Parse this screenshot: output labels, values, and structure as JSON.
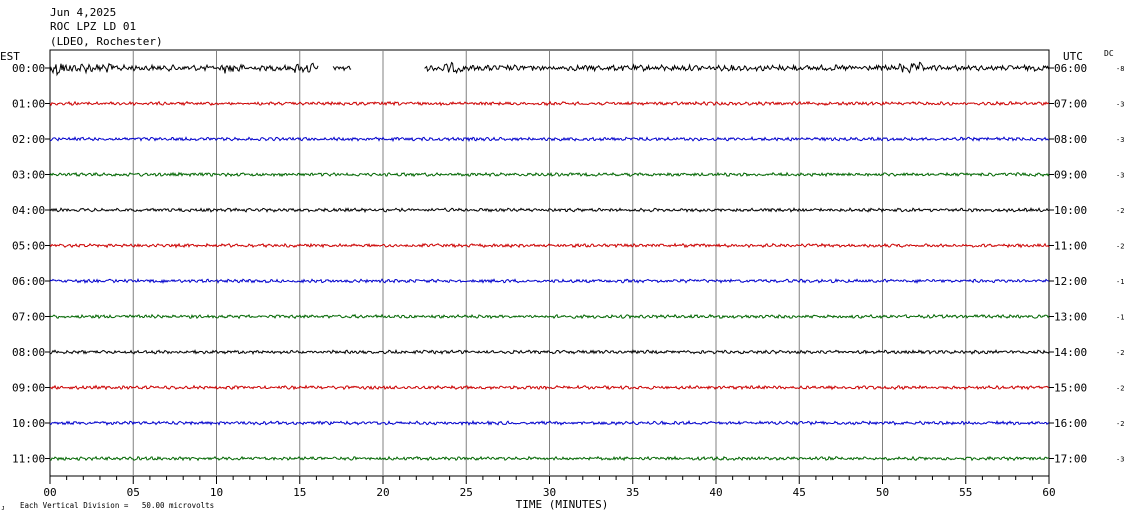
{
  "header": {
    "date": "Jun 4,2025",
    "station": "ROC LPZ LD 01",
    "network": "(LDEO, Rochester)",
    "left_zone": "EST",
    "right_zone": "UTC",
    "dc_label": "DC"
  },
  "chart_data": {
    "type": "line",
    "title": "ROC LPZ LD 01",
    "xlabel": "TIME (MINUTES)",
    "ylabel": "",
    "x_ticks": [
      "00",
      "05",
      "10",
      "15",
      "20",
      "25",
      "30",
      "35",
      "40",
      "45",
      "50",
      "55",
      "60"
    ],
    "xlim": [
      0,
      60
    ],
    "grid": "vertical lines every 5 minutes",
    "rows": [
      {
        "est": "00:00",
        "utc": "06:00",
        "dc": "-8",
        "color": "#000000",
        "data_minutes": [
          [
            0,
            16.1
          ],
          [
            17.0,
            18.1
          ],
          [
            22.5,
            60
          ]
        ],
        "amplitude": "high"
      },
      {
        "est": "01:00",
        "utc": "07:00",
        "dc": "-3",
        "color": "#cc0000",
        "data_minutes": [
          [
            0,
            60
          ]
        ],
        "amplitude": "low"
      },
      {
        "est": "02:00",
        "utc": "08:00",
        "dc": "-3",
        "color": "#0000cc",
        "data_minutes": [
          [
            0,
            60
          ]
        ],
        "amplitude": "low"
      },
      {
        "est": "03:00",
        "utc": "09:00",
        "dc": "-3",
        "color": "#006600",
        "data_minutes": [
          [
            0,
            60
          ]
        ],
        "amplitude": "low"
      },
      {
        "est": "04:00",
        "utc": "10:00",
        "dc": "-2",
        "color": "#000000",
        "data_minutes": [
          [
            0,
            60
          ]
        ],
        "amplitude": "low"
      },
      {
        "est": "05:00",
        "utc": "11:00",
        "dc": "-2",
        "color": "#cc0000",
        "data_minutes": [
          [
            0,
            60
          ]
        ],
        "amplitude": "low"
      },
      {
        "est": "06:00",
        "utc": "12:00",
        "dc": "-1",
        "color": "#0000cc",
        "data_minutes": [
          [
            0,
            60
          ]
        ],
        "amplitude": "low"
      },
      {
        "est": "07:00",
        "utc": "13:00",
        "dc": "-1",
        "color": "#006600",
        "data_minutes": [
          [
            0,
            60
          ]
        ],
        "amplitude": "low"
      },
      {
        "est": "08:00",
        "utc": "14:00",
        "dc": "-2",
        "color": "#000000",
        "data_minutes": [
          [
            0,
            60
          ]
        ],
        "amplitude": "low"
      },
      {
        "est": "09:00",
        "utc": "15:00",
        "dc": "-2",
        "color": "#cc0000",
        "data_minutes": [
          [
            0,
            60
          ]
        ],
        "amplitude": "low"
      },
      {
        "est": "10:00",
        "utc": "16:00",
        "dc": "-2",
        "color": "#0000cc",
        "data_minutes": [
          [
            0,
            60
          ]
        ],
        "amplitude": "low"
      },
      {
        "est": "11:00",
        "utc": "17:00",
        "dc": "-3",
        "color": "#006600",
        "data_minutes": [
          [
            0,
            60
          ]
        ],
        "amplitude": "low"
      }
    ]
  },
  "footer": {
    "scale_note": "Each Vertical Division =   50.00 microvolts",
    "corner_mark": "ᴊ",
    "xlabel": "TIME (MINUTES)"
  }
}
